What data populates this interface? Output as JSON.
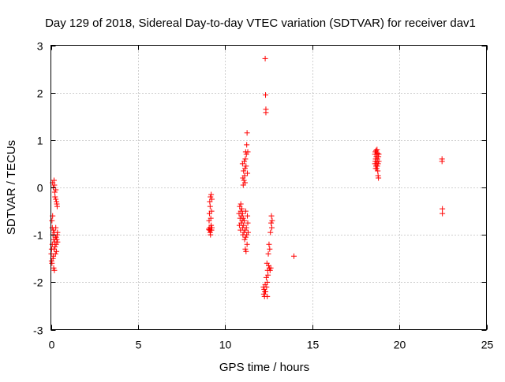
{
  "chart_data": {
    "type": "scatter",
    "title": "Day 129 of 2018, Sidereal Day-to-day VTEC variation (SDTVAR) for receiver dav1",
    "xlabel": "GPS time / hours",
    "ylabel": "SDTVAR / TECUs",
    "xlim": [
      0,
      25
    ],
    "ylim": [
      -3,
      3
    ],
    "xticks": [
      0,
      5,
      10,
      15,
      20,
      25
    ],
    "yticks": [
      -3,
      -2,
      -1,
      0,
      1,
      2,
      3
    ],
    "xtick_labels": [
      "0",
      "5",
      "10",
      "15",
      "20",
      "25"
    ],
    "ytick_labels": [
      "-3",
      "-2",
      "-1",
      "0",
      "1",
      "2",
      "3"
    ],
    "grid": true,
    "marker": "+",
    "color": "#ff0000",
    "series": [
      {
        "name": "SDTVAR",
        "points": [
          [
            0.02,
            -1.4
          ],
          [
            0.04,
            -1.3
          ],
          [
            0.06,
            -1.6
          ],
          [
            0.08,
            -1.2
          ],
          [
            0.1,
            0.1
          ],
          [
            0.1,
            -0.6
          ],
          [
            0.12,
            -1.5
          ],
          [
            0.12,
            -1.0
          ],
          [
            0.14,
            0.0
          ],
          [
            0.14,
            -0.9
          ],
          [
            0.16,
            -1.1
          ],
          [
            0.16,
            -1.7
          ],
          [
            0.18,
            0.15
          ],
          [
            0.18,
            -1.3
          ],
          [
            0.2,
            0.05
          ],
          [
            0.2,
            -0.95
          ],
          [
            0.22,
            -1.15
          ],
          [
            0.22,
            -0.1
          ],
          [
            0.24,
            -1.25
          ],
          [
            0.24,
            -0.2
          ],
          [
            0.26,
            -1.05
          ],
          [
            0.26,
            -1.4
          ],
          [
            0.28,
            -0.25
          ],
          [
            0.28,
            -0.85
          ],
          [
            0.3,
            -1.2
          ],
          [
            0.3,
            -1.05
          ],
          [
            0.32,
            -0.3
          ],
          [
            0.32,
            -1.35
          ],
          [
            0.34,
            -0.35
          ],
          [
            0.34,
            -1.1
          ],
          [
            0.36,
            -0.4
          ],
          [
            0.36,
            -1.0
          ],
          [
            0.38,
            -1.15
          ],
          [
            0.38,
            -0.95
          ],
          [
            0.06,
            -0.7
          ],
          [
            0.08,
            -0.85
          ],
          [
            0.04,
            -1.55
          ],
          [
            0.14,
            -1.45
          ],
          [
            0.2,
            -1.75
          ],
          [
            0.28,
            -0.05
          ],
          [
            9.1,
            -0.9
          ],
          [
            9.1,
            -0.55
          ],
          [
            9.12,
            -0.85
          ],
          [
            9.12,
            -0.3
          ],
          [
            9.14,
            -0.95
          ],
          [
            9.14,
            -0.4
          ],
          [
            9.16,
            -0.2
          ],
          [
            9.16,
            -1.0
          ],
          [
            9.18,
            -0.65
          ],
          [
            9.18,
            -0.9
          ],
          [
            9.2,
            -0.15
          ],
          [
            9.2,
            -0.8
          ],
          [
            9.22,
            -0.5
          ],
          [
            9.22,
            -0.9
          ],
          [
            9.24,
            -0.25
          ],
          [
            9.24,
            -0.85
          ],
          [
            9.08,
            -0.7
          ],
          [
            9.06,
            -0.88
          ],
          [
            10.8,
            -0.55
          ],
          [
            10.82,
            -0.8
          ],
          [
            10.84,
            -0.4
          ],
          [
            10.86,
            -0.65
          ],
          [
            10.88,
            -0.9
          ],
          [
            10.9,
            -0.5
          ],
          [
            10.9,
            -0.35
          ],
          [
            10.92,
            -0.75
          ],
          [
            10.94,
            -0.6
          ],
          [
            10.96,
            -0.45
          ],
          [
            10.98,
            -0.7
          ],
          [
            11.0,
            -0.55
          ],
          [
            11.0,
            0.5
          ],
          [
            11.0,
            -0.85
          ],
          [
            11.02,
            0.2
          ],
          [
            11.02,
            -1.0
          ],
          [
            11.04,
            0.05
          ],
          [
            11.04,
            -0.65
          ],
          [
            11.06,
            0.35
          ],
          [
            11.06,
            -0.8
          ],
          [
            11.08,
            0.15
          ],
          [
            11.08,
            -0.95
          ],
          [
            11.1,
            0.55
          ],
          [
            11.1,
            -0.7
          ],
          [
            11.12,
            0.25
          ],
          [
            11.12,
            -1.1
          ],
          [
            11.14,
            0.4
          ],
          [
            11.14,
            -0.9
          ],
          [
            11.16,
            0.6
          ],
          [
            11.16,
            -1.3
          ],
          [
            11.18,
            0.75
          ],
          [
            11.18,
            -1.05
          ],
          [
            11.2,
            0.45
          ],
          [
            11.2,
            -1.35
          ],
          [
            11.22,
            0.7
          ],
          [
            11.22,
            -0.85
          ],
          [
            11.24,
            0.9
          ],
          [
            11.24,
            -1.0
          ],
          [
            11.26,
            1.15
          ],
          [
            11.26,
            -1.2
          ],
          [
            11.28,
            0.3
          ],
          [
            11.28,
            -0.6
          ],
          [
            11.3,
            0.75
          ],
          [
            11.3,
            -0.75
          ],
          [
            11.32,
            -0.95
          ],
          [
            11.14,
            0.1
          ],
          [
            11.18,
            -0.5
          ],
          [
            12.2,
            -2.1
          ],
          [
            12.22,
            -2.25
          ],
          [
            12.24,
            -2.15
          ],
          [
            12.26,
            -2.3
          ],
          [
            12.28,
            -2.2
          ],
          [
            12.3,
            2.72
          ],
          [
            12.3,
            -2.05
          ],
          [
            12.32,
            1.95
          ],
          [
            12.32,
            -2.2
          ],
          [
            12.34,
            1.65
          ],
          [
            12.34,
            1.58
          ],
          [
            12.36,
            -1.9
          ],
          [
            12.38,
            -2.1
          ],
          [
            12.4,
            -1.6
          ],
          [
            12.42,
            -2.0
          ],
          [
            12.44,
            -1.75
          ],
          [
            12.46,
            -1.85
          ],
          [
            12.48,
            -1.4
          ],
          [
            12.5,
            -1.65
          ],
          [
            12.52,
            -1.2
          ],
          [
            12.54,
            -1.7
          ],
          [
            12.56,
            -1.3
          ],
          [
            12.58,
            -1.75
          ],
          [
            12.6,
            -0.95
          ],
          [
            12.62,
            -1.7
          ],
          [
            12.64,
            -0.75
          ],
          [
            12.66,
            -0.6
          ],
          [
            12.68,
            -0.85
          ],
          [
            12.7,
            -0.7
          ],
          [
            12.42,
            -2.3
          ],
          [
            13.95,
            -1.45
          ],
          [
            18.6,
            0.7
          ],
          [
            18.6,
            0.5
          ],
          [
            18.62,
            0.55
          ],
          [
            18.62,
            0.75
          ],
          [
            18.64,
            0.4
          ],
          [
            18.64,
            0.6
          ],
          [
            18.66,
            0.78
          ],
          [
            18.66,
            0.45
          ],
          [
            18.68,
            0.65
          ],
          [
            18.68,
            0.5
          ],
          [
            18.7,
            0.7
          ],
          [
            18.7,
            0.4
          ],
          [
            18.72,
            0.55
          ],
          [
            18.72,
            0.8
          ],
          [
            18.74,
            0.45
          ],
          [
            18.74,
            0.6
          ],
          [
            18.76,
            0.72
          ],
          [
            18.76,
            0.35
          ],
          [
            18.78,
            0.5
          ],
          [
            18.78,
            0.25
          ],
          [
            18.8,
            0.65
          ],
          [
            18.8,
            0.2
          ],
          [
            18.82,
            0.55
          ],
          [
            18.82,
            0.7
          ],
          [
            22.45,
            0.6
          ],
          [
            22.45,
            0.55
          ],
          [
            22.47,
            -0.45
          ],
          [
            22.47,
            -0.55
          ]
        ]
      }
    ]
  }
}
